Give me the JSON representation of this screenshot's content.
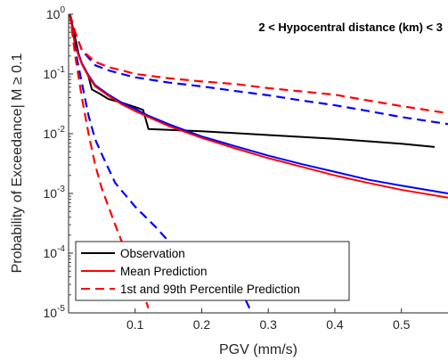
{
  "chart_data": {
    "type": "line",
    "xlabel": "PGV (mm/s)",
    "ylabel": "Probability of Exceedance| M ≥ 0.1",
    "annotation": "2 < Hypocentral distance (km) < 3",
    "xlim": [
      0,
      0.57
    ],
    "ylim": [
      1e-05,
      1
    ],
    "yscale": "log",
    "grid": false,
    "legend_position": "bottom-left",
    "x_ticks": [
      {
        "value": 0.1,
        "label": "0.1"
      },
      {
        "value": 0.2,
        "label": "0.2"
      },
      {
        "value": 0.3,
        "label": "0.3"
      },
      {
        "value": 0.4,
        "label": "0.4"
      },
      {
        "value": 0.5,
        "label": "0.5"
      }
    ],
    "y_ticks": [
      {
        "value": 1e-05,
        "base": "10",
        "exp": "-5"
      },
      {
        "value": 0.0001,
        "base": "10",
        "exp": "-4"
      },
      {
        "value": 0.001,
        "base": "10",
        "exp": "-3"
      },
      {
        "value": 0.01,
        "base": "10",
        "exp": "-2"
      },
      {
        "value": 0.1,
        "base": "10",
        "exp": "-1"
      },
      {
        "value": 1,
        "base": "10",
        "exp": "0"
      }
    ],
    "legend": [
      {
        "label": "Observation",
        "color": "#000000",
        "dash": false
      },
      {
        "label": "Mean Prediction",
        "color": "#ff0000",
        "dash": false
      },
      {
        "label": "1st and 99th Percentile Prediction",
        "color": "#ff0000",
        "dash": true
      }
    ],
    "series": [
      {
        "color": "#000000",
        "width": 2,
        "dash": false,
        "points": [
          [
            0.002,
            1.0
          ],
          [
            0.01,
            0.4
          ],
          [
            0.015,
            0.22
          ],
          [
            0.02,
            0.15
          ],
          [
            0.025,
            0.12
          ],
          [
            0.03,
            0.09
          ],
          [
            0.035,
            0.055
          ],
          [
            0.045,
            0.048
          ],
          [
            0.06,
            0.038
          ],
          [
            0.08,
            0.033
          ],
          [
            0.1,
            0.028
          ],
          [
            0.112,
            0.025
          ],
          [
            0.12,
            0.012
          ],
          [
            0.2,
            0.011
          ],
          [
            0.3,
            0.0095
          ],
          [
            0.4,
            0.0082
          ],
          [
            0.5,
            0.0068
          ],
          [
            0.55,
            0.006
          ]
        ]
      },
      {
        "color": "#0000ff",
        "width": 2,
        "dash": false,
        "points": [
          [
            0.002,
            1.0
          ],
          [
            0.01,
            0.3
          ],
          [
            0.02,
            0.15
          ],
          [
            0.03,
            0.095
          ],
          [
            0.04,
            0.065
          ],
          [
            0.06,
            0.045
          ],
          [
            0.08,
            0.033
          ],
          [
            0.1,
            0.026
          ],
          [
            0.12,
            0.02
          ],
          [
            0.15,
            0.0145
          ],
          [
            0.2,
            0.009
          ],
          [
            0.25,
            0.0062
          ],
          [
            0.3,
            0.0043
          ],
          [
            0.35,
            0.0031
          ],
          [
            0.4,
            0.0023
          ],
          [
            0.45,
            0.0017
          ],
          [
            0.5,
            0.00135
          ],
          [
            0.57,
            0.001
          ]
        ]
      },
      {
        "color": "#ff0000",
        "width": 2,
        "dash": false,
        "points": [
          [
            0.002,
            1.0
          ],
          [
            0.01,
            0.29
          ],
          [
            0.02,
            0.145
          ],
          [
            0.03,
            0.09
          ],
          [
            0.04,
            0.062
          ],
          [
            0.06,
            0.043
          ],
          [
            0.08,
            0.031
          ],
          [
            0.1,
            0.024
          ],
          [
            0.12,
            0.019
          ],
          [
            0.15,
            0.0135
          ],
          [
            0.2,
            0.0085
          ],
          [
            0.25,
            0.0057
          ],
          [
            0.3,
            0.0039
          ],
          [
            0.35,
            0.0028
          ],
          [
            0.4,
            0.002
          ],
          [
            0.45,
            0.0015
          ],
          [
            0.5,
            0.00115
          ],
          [
            0.57,
            0.00085
          ]
        ]
      },
      {
        "color": "#0000ff",
        "width": 2.2,
        "dash": true,
        "points": [
          [
            0.002,
            1.0
          ],
          [
            0.01,
            0.5
          ],
          [
            0.02,
            0.25
          ],
          [
            0.04,
            0.14
          ],
          [
            0.06,
            0.115
          ],
          [
            0.08,
            0.1
          ],
          [
            0.1,
            0.088
          ],
          [
            0.15,
            0.072
          ],
          [
            0.2,
            0.062
          ],
          [
            0.25,
            0.052
          ],
          [
            0.3,
            0.044
          ],
          [
            0.35,
            0.036
          ],
          [
            0.4,
            0.03
          ],
          [
            0.45,
            0.024
          ],
          [
            0.5,
            0.019
          ],
          [
            0.57,
            0.0145
          ]
        ]
      },
      {
        "color": "#ff0000",
        "width": 2.2,
        "dash": true,
        "points": [
          [
            0.002,
            1.0
          ],
          [
            0.01,
            0.5
          ],
          [
            0.02,
            0.25
          ],
          [
            0.04,
            0.16
          ],
          [
            0.06,
            0.13
          ],
          [
            0.08,
            0.115
          ],
          [
            0.1,
            0.1
          ],
          [
            0.15,
            0.085
          ],
          [
            0.2,
            0.075
          ],
          [
            0.25,
            0.068
          ],
          [
            0.3,
            0.058
          ],
          [
            0.35,
            0.051
          ],
          [
            0.4,
            0.045
          ],
          [
            0.45,
            0.036
          ],
          [
            0.5,
            0.029
          ],
          [
            0.57,
            0.022
          ]
        ]
      },
      {
        "color": "#0000ff",
        "width": 2.2,
        "dash": true,
        "points": [
          [
            0.002,
            1.0
          ],
          [
            0.01,
            0.25
          ],
          [
            0.02,
            0.07
          ],
          [
            0.03,
            0.02
          ],
          [
            0.04,
            0.008
          ],
          [
            0.05,
            0.0045
          ],
          [
            0.07,
            0.0015
          ],
          [
            0.1,
            0.0006
          ],
          [
            0.13,
            0.00028
          ],
          [
            0.16,
            0.00012
          ],
          [
            0.2,
            7e-05
          ],
          [
            0.25,
            4e-05
          ],
          [
            0.275,
            1e-05
          ]
        ]
      },
      {
        "color": "#ff0000",
        "width": 2.2,
        "dash": true,
        "points": [
          [
            0.002,
            1.0
          ],
          [
            0.01,
            0.2
          ],
          [
            0.02,
            0.04
          ],
          [
            0.03,
            0.01
          ],
          [
            0.04,
            0.003
          ],
          [
            0.05,
            0.0012
          ],
          [
            0.07,
            0.0003
          ],
          [
            0.09,
            8e-05
          ],
          [
            0.11,
            2.5e-05
          ],
          [
            0.12,
            1.2e-05
          ]
        ]
      }
    ]
  }
}
